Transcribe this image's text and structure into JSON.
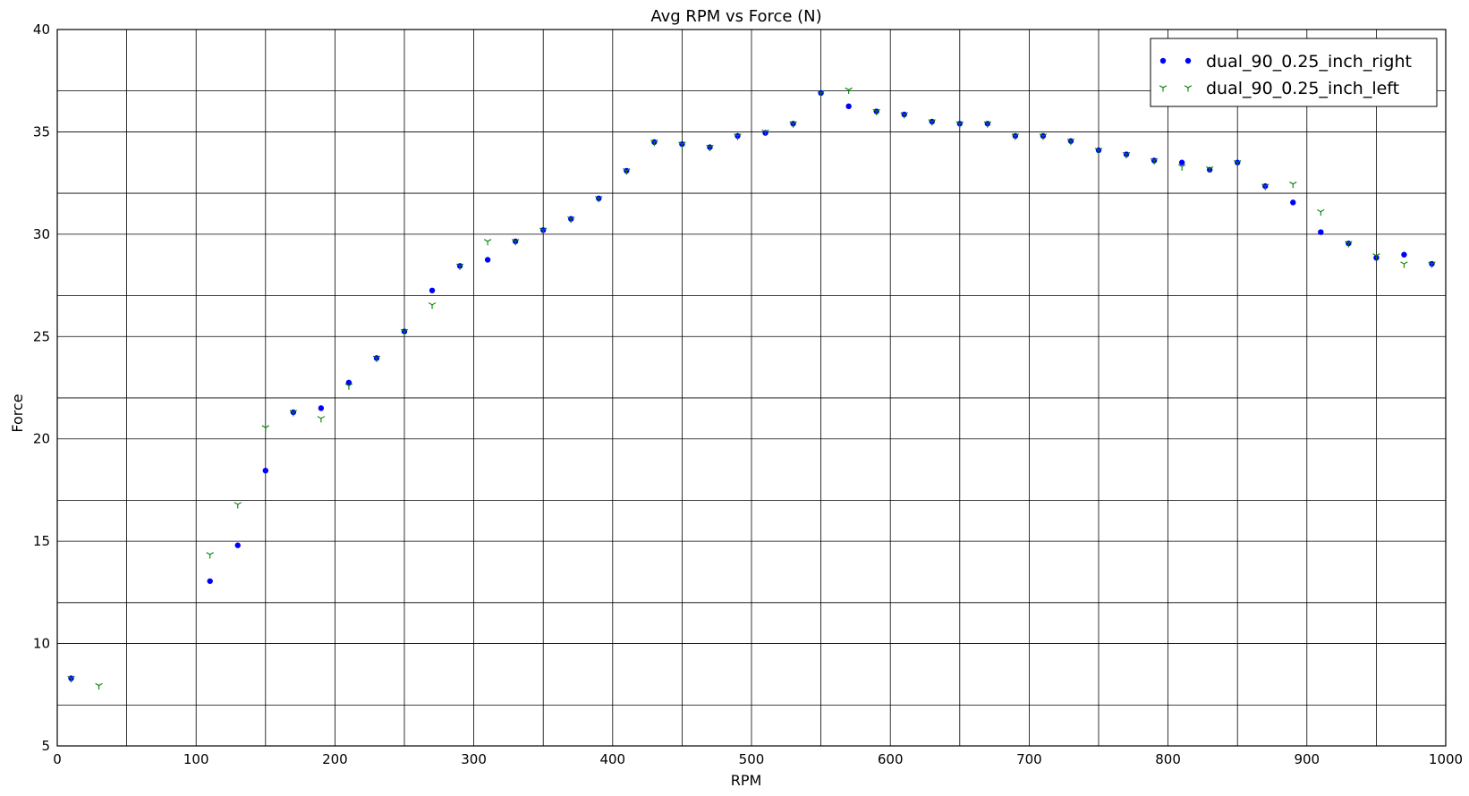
{
  "chart_data": {
    "type": "scatter",
    "title": "Avg RPM vs Force (N)",
    "xlabel": "RPM",
    "ylabel": "Force",
    "xlim": [
      0,
      1000
    ],
    "ylim": [
      5,
      40
    ],
    "x_ticks": [
      0,
      100,
      200,
      300,
      400,
      500,
      600,
      700,
      800,
      900,
      1000
    ],
    "y_ticks": [
      5,
      10,
      15,
      20,
      25,
      30,
      35,
      40
    ],
    "grid_x": [
      0,
      50,
      100,
      150,
      200,
      250,
      300,
      350,
      400,
      450,
      500,
      550,
      600,
      650,
      700,
      750,
      800,
      850,
      900,
      950,
      1000
    ],
    "grid_y": [
      5,
      7,
      10,
      12,
      15,
      17,
      20,
      22,
      25,
      27,
      30,
      32,
      35,
      37,
      40
    ],
    "grid": true,
    "legend_position": "top-right",
    "series": [
      {
        "name": "dual_90_0.25_inch_right",
        "marker": "dot",
        "color": "#0000ff",
        "points": [
          [
            10,
            8.3
          ],
          [
            110,
            13.05
          ],
          [
            130,
            14.8
          ],
          [
            150,
            18.45
          ],
          [
            170,
            21.3
          ],
          [
            190,
            21.5
          ],
          [
            210,
            22.75
          ],
          [
            230,
            23.95
          ],
          [
            250,
            25.25
          ],
          [
            270,
            27.25
          ],
          [
            290,
            28.45
          ],
          [
            310,
            28.75
          ],
          [
            330,
            29.65
          ],
          [
            350,
            30.2
          ],
          [
            370,
            30.75
          ],
          [
            390,
            31.75
          ],
          [
            410,
            33.1
          ],
          [
            430,
            34.5
          ],
          [
            450,
            34.4
          ],
          [
            470,
            34.25
          ],
          [
            490,
            34.8
          ],
          [
            510,
            34.95
          ],
          [
            530,
            35.4
          ],
          [
            550,
            36.9
          ],
          [
            570,
            36.25
          ],
          [
            590,
            36.0
          ],
          [
            610,
            35.85
          ],
          [
            630,
            35.5
          ],
          [
            650,
            35.4
          ],
          [
            670,
            35.4
          ],
          [
            690,
            34.8
          ],
          [
            710,
            34.8
          ],
          [
            730,
            34.55
          ],
          [
            750,
            34.1
          ],
          [
            770,
            33.9
          ],
          [
            790,
            33.6
          ],
          [
            810,
            33.5
          ],
          [
            830,
            33.15
          ],
          [
            850,
            33.5
          ],
          [
            870,
            32.35
          ],
          [
            890,
            31.55
          ],
          [
            910,
            30.1
          ],
          [
            930,
            29.55
          ],
          [
            950,
            28.85
          ],
          [
            970,
            29.0
          ],
          [
            990,
            28.55
          ]
        ]
      },
      {
        "name": "dual_90_0.25_inch_left",
        "marker": "tri_down",
        "color": "#008000",
        "points": [
          [
            10,
            8.3
          ],
          [
            30,
            7.95
          ],
          [
            110,
            14.35
          ],
          [
            130,
            16.8
          ],
          [
            150,
            20.55
          ],
          [
            170,
            21.3
          ],
          [
            190,
            21.0
          ],
          [
            210,
            22.6
          ],
          [
            230,
            23.95
          ],
          [
            250,
            25.25
          ],
          [
            270,
            26.55
          ],
          [
            290,
            28.45
          ],
          [
            310,
            29.65
          ],
          [
            330,
            29.65
          ],
          [
            350,
            30.2
          ],
          [
            370,
            30.75
          ],
          [
            390,
            31.75
          ],
          [
            410,
            33.1
          ],
          [
            430,
            34.5
          ],
          [
            450,
            34.4
          ],
          [
            470,
            34.25
          ],
          [
            490,
            34.8
          ],
          [
            510,
            35.0
          ],
          [
            530,
            35.4
          ],
          [
            550,
            36.9
          ],
          [
            570,
            37.05
          ],
          [
            590,
            36.0
          ],
          [
            610,
            35.85
          ],
          [
            630,
            35.5
          ],
          [
            650,
            35.4
          ],
          [
            670,
            35.4
          ],
          [
            690,
            34.8
          ],
          [
            710,
            34.8
          ],
          [
            730,
            34.55
          ],
          [
            750,
            34.1
          ],
          [
            770,
            33.9
          ],
          [
            790,
            33.6
          ],
          [
            810,
            33.3
          ],
          [
            830,
            33.2
          ],
          [
            850,
            33.5
          ],
          [
            870,
            32.35
          ],
          [
            890,
            32.45
          ],
          [
            910,
            31.1
          ],
          [
            930,
            29.55
          ],
          [
            950,
            28.95
          ],
          [
            970,
            28.55
          ],
          [
            990,
            28.55
          ]
        ]
      }
    ]
  }
}
